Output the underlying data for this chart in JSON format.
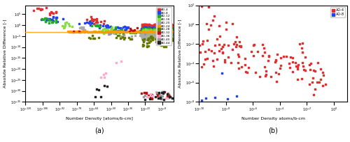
{
  "subplot_a": {
    "title": "(a)",
    "xlabel": "Number Density [atoms/b-cm]",
    "ylabel": "Absolute Relative Difference [-]",
    "xlim_exp": [
      -120,
      1
    ],
    "ylim_exp": [
      -35,
      9
    ],
    "hline_y_exp": -3,
    "hline_color": "#ff9900",
    "series": [
      {
        "label": "AO-4",
        "color": "#e03030"
      },
      {
        "label": "AO-8",
        "color": "#2244ee"
      },
      {
        "label": "AO-12",
        "color": "#22aa22"
      },
      {
        "label": "AO-16",
        "color": "#88dd44"
      },
      {
        "label": "AO-20",
        "color": "#aaaaaa"
      },
      {
        "label": "AO-24",
        "color": "#ff9900"
      },
      {
        "label": "AO-28",
        "color": "#667700"
      },
      {
        "label": "AO-32",
        "color": "#bb1111"
      },
      {
        "label": "AO-36",
        "color": "#ffaacc"
      },
      {
        "label": "AO-40",
        "color": "#999999"
      },
      {
        "label": "AO-44",
        "color": "#222222"
      }
    ]
  },
  "subplot_b": {
    "title": "(b)",
    "xlabel": "Number Density atoms/b-cm",
    "ylabel": "Absolute Relative Difference [-]",
    "xlim_exp": [
      -10,
      1
    ],
    "ylim_exp": [
      -8,
      2
    ],
    "series": [
      {
        "label": "AO-4",
        "color": "#e03030"
      },
      {
        "label": "AO-8",
        "color": "#2244ee"
      }
    ]
  }
}
